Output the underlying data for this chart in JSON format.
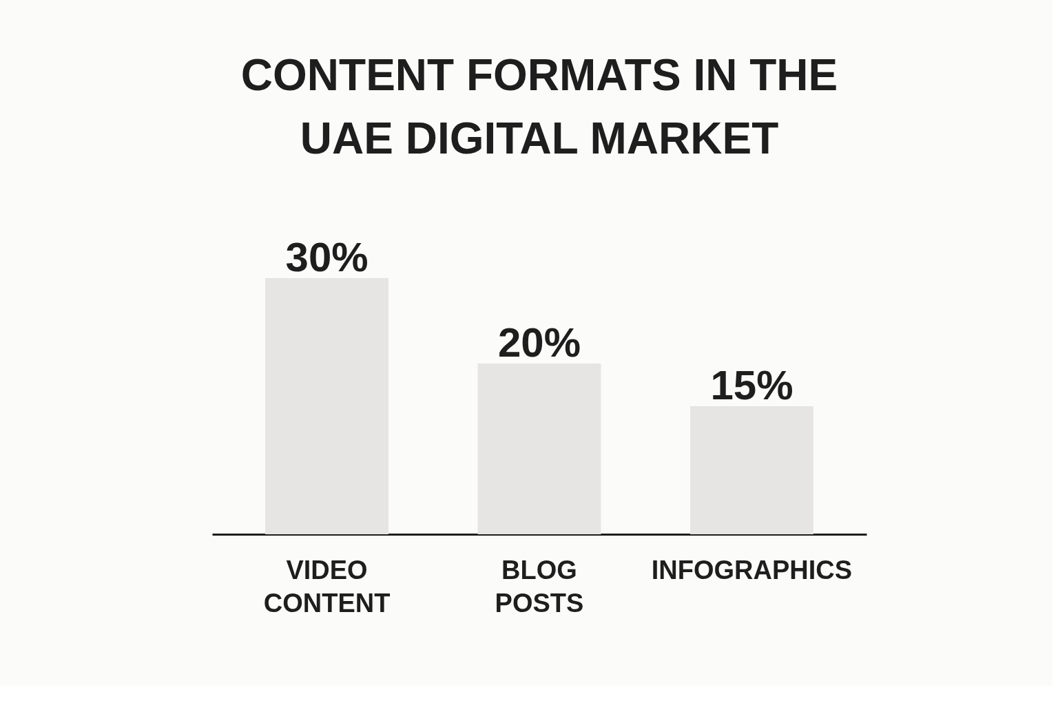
{
  "chart_data": {
    "type": "bar",
    "title": "CONTENT FORMATS IN THE UAE DIGITAL MARKET",
    "categories": [
      "VIDEO CONTENT",
      "BLOG POSTS",
      "INFOGRAPHICS"
    ],
    "values": [
      30,
      20,
      15
    ],
    "value_labels": [
      "30%",
      "20%",
      "15%"
    ],
    "color": "#e6e5e4",
    "grid": false
  }
}
